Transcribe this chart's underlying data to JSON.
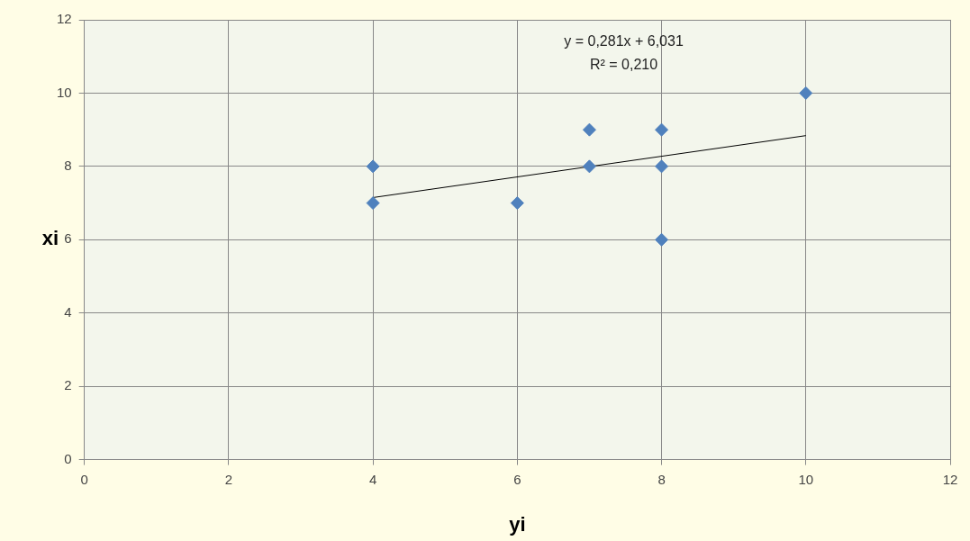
{
  "chart_data": {
    "type": "scatter",
    "xlabel": "yi",
    "ylabel": "xi",
    "annotations": [
      "y = 0,281x + 6,031",
      "R² = 0,210"
    ],
    "series": [
      {
        "color": "#4f81bd",
        "marker": "diamond",
        "x": [
          4,
          4,
          6,
          7,
          7,
          8,
          8,
          8,
          10
        ],
        "values": [
          8,
          7,
          7,
          9,
          8,
          9,
          8,
          6,
          10
        ]
      },
      {
        "type": "line",
        "color": "#000000",
        "marker": "none",
        "x": [
          4,
          10
        ],
        "values": [
          7.15,
          8.84
        ]
      }
    ],
    "xlim": [
      0,
      12
    ],
    "xticks": [
      0,
      2,
      4,
      6,
      8,
      10,
      12
    ],
    "ylim": [
      0,
      12
    ],
    "yticks": [
      0,
      2,
      4,
      6,
      8,
      10,
      12
    ],
    "grid": true,
    "legend": false
  }
}
